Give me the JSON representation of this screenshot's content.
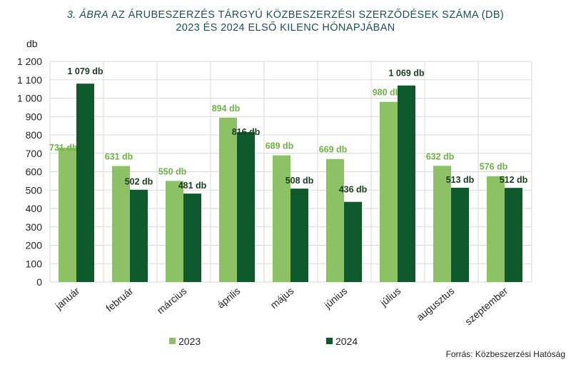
{
  "title": {
    "prefix": "3. ÁBRA",
    "line1_rest": " AZ ÁRUBESZERZÉS TÁRGYÚ KÖZBESZERZÉSI SZERZŐDÉSEK SZÁMA (DB)",
    "line2": "2023 ÉS 2024 ELSŐ KILENC HÓNAPJÁBAN"
  },
  "source": "Forrás: Közbeszerzési Hatóság",
  "chart_data": {
    "type": "bar",
    "ylabel": "db",
    "ylim": [
      0,
      1200
    ],
    "ytick_step": 100,
    "ytick_labels": [
      "0",
      "100",
      "200",
      "300",
      "400",
      "500",
      "600",
      "700",
      "800",
      "900",
      "1 000",
      "1 100",
      "1 200"
    ],
    "grid": true,
    "legend_position": "bottom",
    "categories": [
      "január",
      "február",
      "március",
      "április",
      "május",
      "június",
      "július",
      "augusztus",
      "szeptember"
    ],
    "series": [
      {
        "name": "2023",
        "color": "#8cc265",
        "label_color": "#6fb247",
        "values": [
          731,
          631,
          550,
          894,
          689,
          669,
          980,
          632,
          576
        ],
        "labels": [
          "731 db",
          "631 db",
          "550 db",
          "894 db",
          "689 db",
          "669 db",
          "980 db",
          "632 db",
          "576 db"
        ]
      },
      {
        "name": "2024",
        "color": "#0e5a2c",
        "label_color": "#1a3d1f",
        "values": [
          1079,
          502,
          481,
          816,
          508,
          436,
          1069,
          513,
          512
        ],
        "labels": [
          "1 079 db",
          "502 db",
          "481 db",
          "816 db",
          "508 db",
          "436 db",
          "1 069 db",
          "513 db",
          "512 db"
        ]
      }
    ]
  }
}
